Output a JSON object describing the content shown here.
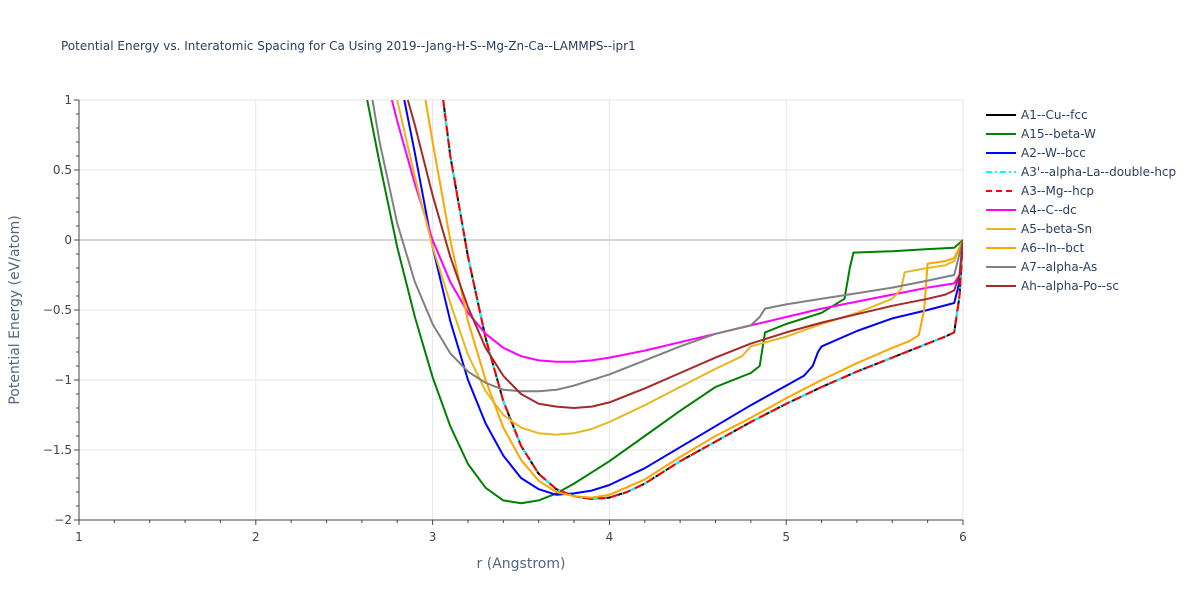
{
  "chart_data": {
    "type": "line",
    "title": "Potential Energy vs. Interatomic Spacing for Ca Using 2019--Jang-H-S--Mg-Zn-Ca--LAMMPS--ipr1",
    "xlabel": "r (Angstrom)",
    "ylabel": "Potential Energy (eV/atom)",
    "xlim": [
      1,
      6
    ],
    "ylim": [
      -2,
      1
    ],
    "xticks": [
      1,
      2,
      3,
      4,
      5,
      6
    ],
    "yticks": [
      1,
      0.5,
      0,
      -0.5,
      -1,
      -1.5,
      -2
    ],
    "ytick_labels": [
      "1",
      "0.5",
      "0",
      "−0.5",
      "−1",
      "−1.5",
      "−2"
    ],
    "grid": true,
    "legend_position": "right",
    "series": [
      {
        "name": "A1--Cu--fcc",
        "color": "#000000",
        "dash": "solid",
        "x": [
          3.06,
          3.1,
          3.2,
          3.3,
          3.4,
          3.5,
          3.6,
          3.7,
          3.8,
          3.9,
          4.0,
          4.1,
          4.2,
          4.4,
          4.6,
          4.8,
          5.0,
          5.2,
          5.4,
          5.6,
          5.8,
          5.9,
          5.95,
          5.98,
          6.0
        ],
        "y": [
          1.0,
          0.6,
          -0.12,
          -0.7,
          -1.15,
          -1.47,
          -1.67,
          -1.78,
          -1.83,
          -1.85,
          -1.84,
          -1.8,
          -1.74,
          -1.58,
          -1.44,
          -1.3,
          -1.17,
          -1.05,
          -0.94,
          -0.84,
          -0.74,
          -0.69,
          -0.66,
          -0.4,
          0.0
        ]
      },
      {
        "name": "A15--beta-W",
        "color": "#008000",
        "dash": "solid",
        "x": [
          2.63,
          2.7,
          2.8,
          2.9,
          3.0,
          3.1,
          3.2,
          3.3,
          3.4,
          3.5,
          3.6,
          3.7,
          3.8,
          4.0,
          4.2,
          4.4,
          4.6,
          4.8,
          4.85,
          4.88,
          5.0,
          5.2,
          5.33,
          5.36,
          5.38,
          5.6,
          5.8,
          5.95,
          6.0
        ],
        "y": [
          1.0,
          0.55,
          -0.05,
          -0.55,
          -0.98,
          -1.33,
          -1.6,
          -1.77,
          -1.86,
          -1.88,
          -1.86,
          -1.81,
          -1.74,
          -1.58,
          -1.4,
          -1.22,
          -1.05,
          -0.95,
          -0.9,
          -0.66,
          -0.6,
          -0.52,
          -0.42,
          -0.2,
          -0.09,
          -0.08,
          -0.065,
          -0.055,
          0.0
        ]
      },
      {
        "name": "A2--W--bcc",
        "color": "#0000ff",
        "dash": "solid",
        "x": [
          2.84,
          2.9,
          3.0,
          3.1,
          3.2,
          3.3,
          3.4,
          3.5,
          3.6,
          3.7,
          3.8,
          3.9,
          4.0,
          4.2,
          4.4,
          4.6,
          4.8,
          5.0,
          5.1,
          5.15,
          5.18,
          5.2,
          5.4,
          5.6,
          5.8,
          5.95,
          5.98,
          6.0
        ],
        "y": [
          1.0,
          0.62,
          -0.05,
          -0.58,
          -1.0,
          -1.31,
          -1.54,
          -1.7,
          -1.78,
          -1.82,
          -1.81,
          -1.79,
          -1.75,
          -1.63,
          -1.48,
          -1.33,
          -1.18,
          -1.04,
          -0.97,
          -0.9,
          -0.8,
          -0.76,
          -0.65,
          -0.56,
          -0.5,
          -0.45,
          -0.3,
          0.0
        ]
      },
      {
        "name": "A3'--alpha-La--double-hcp",
        "color": "#00ffff",
        "dash": "dashdot",
        "x": [
          3.06,
          3.1,
          3.2,
          3.3,
          3.4,
          3.5,
          3.6,
          3.7,
          3.8,
          3.9,
          4.0,
          4.1,
          4.2,
          4.4,
          4.6,
          4.8,
          5.0,
          5.2,
          5.4,
          5.6,
          5.8,
          5.9,
          5.95,
          5.98,
          6.0
        ],
        "y": [
          1.0,
          0.6,
          -0.12,
          -0.7,
          -1.15,
          -1.47,
          -1.67,
          -1.78,
          -1.83,
          -1.85,
          -1.84,
          -1.8,
          -1.74,
          -1.58,
          -1.44,
          -1.3,
          -1.17,
          -1.05,
          -0.94,
          -0.84,
          -0.74,
          -0.69,
          -0.66,
          -0.4,
          0.0
        ]
      },
      {
        "name": "A3--Mg--hcp",
        "color": "#ff0000",
        "dash": "dash",
        "x": [
          3.06,
          3.1,
          3.2,
          3.3,
          3.4,
          3.5,
          3.6,
          3.7,
          3.8,
          3.9,
          4.0,
          4.1,
          4.2,
          4.4,
          4.6,
          4.8,
          5.0,
          5.2,
          5.4,
          5.6,
          5.8,
          5.9,
          5.95,
          5.98,
          6.0
        ],
        "y": [
          1.0,
          0.6,
          -0.12,
          -0.7,
          -1.15,
          -1.47,
          -1.67,
          -1.78,
          -1.83,
          -1.85,
          -1.84,
          -1.8,
          -1.74,
          -1.58,
          -1.44,
          -1.3,
          -1.17,
          -1.05,
          -0.94,
          -0.84,
          -0.74,
          -0.69,
          -0.66,
          -0.4,
          0.0
        ]
      },
      {
        "name": "A4--C--dc",
        "color": "#ff00ff",
        "dash": "solid",
        "x": [
          2.77,
          2.8,
          2.9,
          3.0,
          3.1,
          3.2,
          3.3,
          3.4,
          3.5,
          3.6,
          3.7,
          3.8,
          3.9,
          4.0,
          4.2,
          4.4,
          4.6,
          4.8,
          5.0,
          5.2,
          5.4,
          5.6,
          5.8,
          5.95,
          5.98,
          6.0
        ],
        "y": [
          1.0,
          0.85,
          0.4,
          0.0,
          -0.3,
          -0.52,
          -0.67,
          -0.77,
          -0.83,
          -0.86,
          -0.87,
          -0.87,
          -0.86,
          -0.84,
          -0.79,
          -0.73,
          -0.67,
          -0.61,
          -0.55,
          -0.49,
          -0.44,
          -0.39,
          -0.34,
          -0.31,
          -0.25,
          0.0
        ]
      },
      {
        "name": "A5--beta-Sn",
        "color": "#e6b820",
        "dash": "solid",
        "x": [
          2.8,
          2.9,
          3.0,
          3.1,
          3.2,
          3.3,
          3.4,
          3.5,
          3.6,
          3.7,
          3.8,
          3.9,
          4.0,
          4.2,
          4.4,
          4.6,
          4.75,
          4.8,
          5.0,
          5.2,
          5.4,
          5.6,
          5.65,
          5.67,
          5.8,
          5.9,
          5.95,
          6.0
        ],
        "y": [
          1.0,
          0.45,
          -0.05,
          -0.45,
          -0.82,
          -1.08,
          -1.25,
          -1.34,
          -1.38,
          -1.39,
          -1.38,
          -1.35,
          -1.3,
          -1.18,
          -1.05,
          -0.92,
          -0.83,
          -0.76,
          -0.69,
          -0.6,
          -0.52,
          -0.42,
          -0.35,
          -0.23,
          -0.2,
          -0.18,
          -0.15,
          0.0
        ]
      },
      {
        "name": "A6--In--bct",
        "color": "#ffa500",
        "dash": "solid",
        "x": [
          2.96,
          3.0,
          3.1,
          3.2,
          3.3,
          3.4,
          3.5,
          3.6,
          3.7,
          3.8,
          3.9,
          4.0,
          4.2,
          4.4,
          4.6,
          4.8,
          5.0,
          5.2,
          5.4,
          5.6,
          5.7,
          5.75,
          5.78,
          5.8,
          5.85,
          5.9,
          5.95,
          6.0
        ],
        "y": [
          1.0,
          0.7,
          0.0,
          -0.58,
          -1.0,
          -1.34,
          -1.57,
          -1.72,
          -1.8,
          -1.83,
          -1.84,
          -1.82,
          -1.71,
          -1.55,
          -1.4,
          -1.27,
          -1.13,
          -1.0,
          -0.88,
          -0.77,
          -0.72,
          -0.68,
          -0.5,
          -0.17,
          -0.16,
          -0.15,
          -0.13,
          0.0
        ]
      },
      {
        "name": "A7--alpha-As",
        "color": "#808080",
        "dash": "solid",
        "x": [
          2.66,
          2.7,
          2.8,
          2.9,
          3.0,
          3.1,
          3.2,
          3.3,
          3.4,
          3.5,
          3.6,
          3.7,
          3.8,
          4.0,
          4.2,
          4.4,
          4.6,
          4.8,
          4.85,
          4.88,
          5.0,
          5.2,
          5.4,
          5.6,
          5.8,
          5.95,
          6.0
        ],
        "y": [
          1.0,
          0.7,
          0.12,
          -0.3,
          -0.6,
          -0.81,
          -0.94,
          -1.02,
          -1.07,
          -1.08,
          -1.08,
          -1.07,
          -1.04,
          -0.96,
          -0.86,
          -0.76,
          -0.67,
          -0.61,
          -0.55,
          -0.49,
          -0.46,
          -0.42,
          -0.38,
          -0.34,
          -0.29,
          -0.25,
          0.0
        ]
      },
      {
        "name": "Ah--alpha-Po--sc",
        "color": "#a52a2a",
        "dash": "solid",
        "x": [
          2.86,
          2.9,
          3.0,
          3.1,
          3.2,
          3.3,
          3.4,
          3.5,
          3.6,
          3.7,
          3.8,
          3.9,
          4.0,
          4.2,
          4.4,
          4.6,
          4.8,
          5.0,
          5.2,
          5.4,
          5.6,
          5.8,
          5.9,
          5.95,
          5.98,
          6.0
        ],
        "y": [
          1.0,
          0.82,
          0.32,
          -0.12,
          -0.48,
          -0.77,
          -0.97,
          -1.1,
          -1.17,
          -1.19,
          -1.2,
          -1.19,
          -1.16,
          -1.06,
          -0.95,
          -0.84,
          -0.74,
          -0.66,
          -0.59,
          -0.53,
          -0.47,
          -0.42,
          -0.39,
          -0.36,
          -0.25,
          0.0
        ]
      }
    ]
  }
}
